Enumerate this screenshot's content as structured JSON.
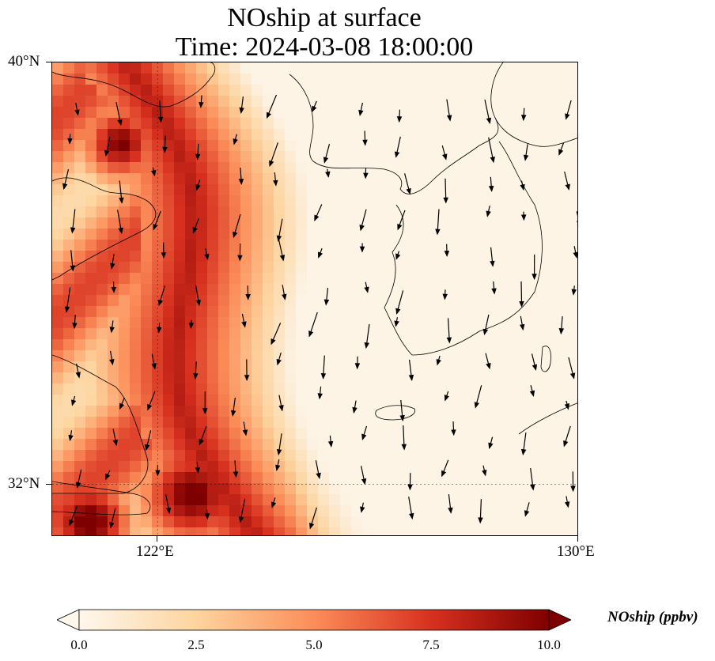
{
  "title_line1": "NOship at surface",
  "title_line2": "Time: 2024-03-08 18:00:00",
  "map": {
    "lat_range": [
      31.0,
      40.0
    ],
    "lon_range": [
      120.0,
      130.0
    ],
    "lat_ticks": [
      {
        "value": 40,
        "label": "40°N"
      },
      {
        "value": 32,
        "label": "32°N"
      }
    ],
    "lon_ticks": [
      {
        "value": 122,
        "label": "122°E"
      },
      {
        "value": 130,
        "label": "130°E"
      }
    ],
    "gridlines": {
      "lat": [
        32
      ],
      "lon": [
        122
      ],
      "style": "dotted"
    },
    "field_colors": {
      "low": "#fff5eb",
      "mid": "#fc8d59",
      "high": "#7f0000"
    },
    "vector_color": "#000000"
  },
  "colorbar": {
    "label": "NOship (ppbv)",
    "min": 0.0,
    "max": 10.0,
    "ticks": [
      "0.0",
      "2.5",
      "5.0",
      "7.5",
      "10.0"
    ],
    "colormap": "OrRd",
    "extend": "both"
  }
}
